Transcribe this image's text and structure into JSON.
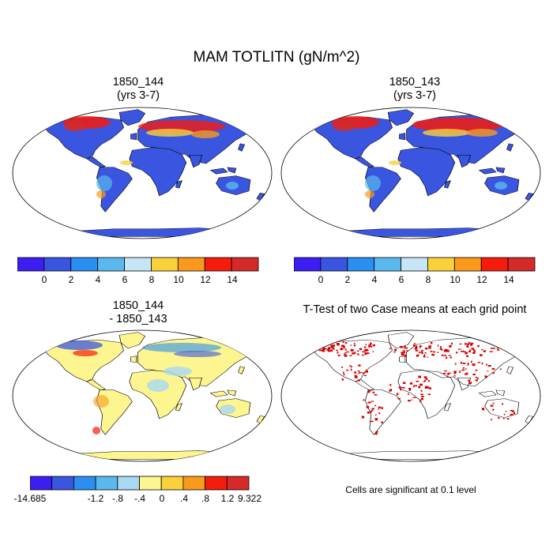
{
  "title": "MAM TOTLITN (gN/m^2)",
  "panels": [
    {
      "id": "case1",
      "title_line1": "1850_144",
      "title_line2": "(yrs 3-7)"
    },
    {
      "id": "case2",
      "title_line1": "1850_143",
      "title_line2": "(yrs 3-7)"
    },
    {
      "id": "diff",
      "title_line1": "1850_144",
      "title_line2": "- 1850_143"
    },
    {
      "id": "ttest",
      "title_line1": "T-Test of two Case means at each grid point",
      "title_line2": ""
    }
  ],
  "colorbar_main": {
    "colors": [
      "#3c1df2",
      "#3a55e0",
      "#2a8ff0",
      "#5ab8ee",
      "#c7e6f5",
      "#fbd13a",
      "#f99a1c",
      "#f51b0d",
      "#d42a2a"
    ],
    "labels": [
      "0",
      "2",
      "4",
      "6",
      "8",
      "10",
      "12",
      "14"
    ]
  },
  "colorbar_diff": {
    "colors": [
      "#3c1df2",
      "#3a55e0",
      "#2a8ff0",
      "#5ab8ee",
      "#a8d8f2",
      "#fdf58f",
      "#fbd13a",
      "#f99a1c",
      "#f51b0d",
      "#d42a2a"
    ],
    "labels": [
      "-14.685",
      "-1.2",
      "-.8",
      "-.4",
      "0",
      ".4",
      ".8",
      "1.2",
      "9.322"
    ]
  },
  "note": "Cells are significant at 0.1 level",
  "colors": {
    "land_low": "#3a55e0",
    "diff_land": "#fdf58f",
    "sig": "#d40000",
    "coast": "#000000"
  }
}
